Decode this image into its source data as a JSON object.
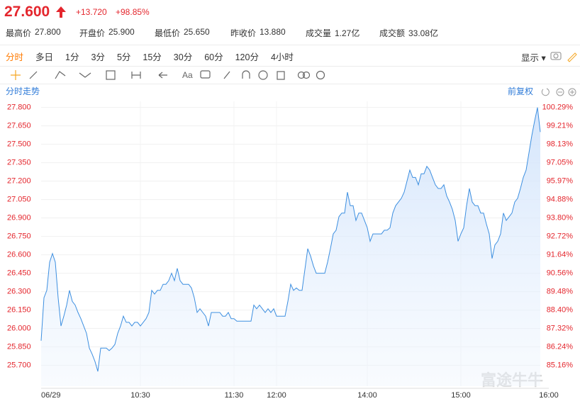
{
  "quote": {
    "price": "27.600",
    "change": "+13.720",
    "change_pct": "+98.85%"
  },
  "stats": [
    {
      "label": "最高价",
      "value": "27.800"
    },
    {
      "label": "开盘价",
      "value": "25.900"
    },
    {
      "label": "最低价",
      "value": "25.650"
    },
    {
      "label": "昨收价",
      "value": "13.880"
    },
    {
      "label": "成交量",
      "value": "1.27亿"
    },
    {
      "label": "成交额",
      "value": "33.08亿"
    }
  ],
  "tabs": [
    "分时",
    "多日",
    "1分",
    "3分",
    "5分",
    "15分",
    "30分",
    "60分",
    "120分",
    "4小时"
  ],
  "display": "显示",
  "toolbar_text": "Aa",
  "chart_data": {
    "type": "line",
    "title": "分时走势",
    "adjust": "前复权",
    "watermark": "富途牛牛",
    "color": "#3d8fe0",
    "values": [
      25.9,
      26.25,
      26.31,
      26.54,
      26.61,
      26.54,
      26.25,
      26.02,
      26.1,
      26.19,
      26.31,
      26.22,
      26.19,
      26.13,
      26.08,
      26.02,
      25.96,
      25.84,
      25.79,
      25.73,
      25.65,
      25.84,
      25.84,
      25.84,
      25.82,
      25.84,
      25.87,
      25.96,
      26.02,
      26.1,
      26.05,
      26.05,
      26.02,
      26.05,
      26.05,
      26.02,
      26.05,
      26.08,
      26.13,
      26.31,
      26.28,
      26.31,
      26.31,
      26.36,
      26.36,
      26.39,
      26.45,
      26.39,
      26.49,
      26.39,
      26.36,
      26.36,
      26.36,
      26.33,
      26.25,
      26.13,
      26.16,
      26.13,
      26.1,
      26.02,
      26.13,
      26.13,
      26.13,
      26.13,
      26.1,
      26.1,
      26.13,
      26.08,
      26.08,
      26.06,
      26.06,
      26.06,
      26.06,
      26.06,
      26.06,
      26.19,
      26.16,
      26.19,
      26.16,
      26.13,
      26.16,
      26.13,
      26.16,
      26.1,
      26.1,
      26.1,
      26.1,
      26.22,
      26.36,
      26.31,
      26.33,
      26.31,
      26.31,
      26.48,
      26.65,
      26.59,
      26.51,
      26.45,
      26.45,
      26.45,
      26.45,
      26.54,
      26.65,
      26.77,
      26.8,
      26.91,
      26.94,
      26.94,
      27.11,
      27.0,
      27.0,
      26.88,
      26.94,
      26.94,
      26.88,
      26.82,
      26.71,
      26.77,
      26.77,
      26.77,
      26.77,
      26.8,
      26.8,
      26.82,
      26.94,
      27.0,
      27.03,
      27.06,
      27.11,
      27.2,
      27.29,
      27.23,
      27.23,
      27.17,
      27.26,
      27.26,
      27.32,
      27.29,
      27.23,
      27.17,
      27.14,
      27.14,
      27.17,
      27.08,
      27.03,
      26.97,
      26.88,
      26.71,
      26.77,
      26.82,
      27.0,
      27.14,
      27.03,
      27.0,
      27.0,
      26.94,
      26.94,
      26.85,
      26.77,
      26.57,
      26.68,
      26.71,
      26.77,
      26.94,
      26.88,
      26.91,
      26.94,
      27.03,
      27.06,
      27.14,
      27.23,
      27.29,
      27.43,
      27.57,
      27.69,
      27.8,
      27.6
    ],
    "xlim": [
      0,
      179
    ],
    "xticks": [
      {
        "value": 0,
        "label": "06/29"
      },
      {
        "value": 35,
        "label": "10:30"
      },
      {
        "value": 68,
        "label": "11:30"
      },
      {
        "value": 83,
        "label": "12:00"
      },
      {
        "value": 115,
        "label": "14:00"
      },
      {
        "value": 148,
        "label": "15:00"
      },
      {
        "value": 179,
        "label": "16:00"
      }
    ],
    "ylim": [
      25.53,
      27.85
    ],
    "yticks": [
      {
        "value": 27.8,
        "label": "27.800"
      },
      {
        "value": 27.65,
        "label": "27.650"
      },
      {
        "value": 27.5,
        "label": "27.500"
      },
      {
        "value": 27.35,
        "label": "27.350"
      },
      {
        "value": 27.2,
        "label": "27.200"
      },
      {
        "value": 27.05,
        "label": "27.050"
      },
      {
        "value": 26.9,
        "label": "26.900"
      },
      {
        "value": 26.75,
        "label": "26.750"
      },
      {
        "value": 26.6,
        "label": "26.600"
      },
      {
        "value": 26.45,
        "label": "26.450"
      },
      {
        "value": 26.3,
        "label": "26.300"
      },
      {
        "value": 26.15,
        "label": "26.150"
      },
      {
        "value": 26,
        "label": "26.000"
      },
      {
        "value": 25.85,
        "label": "25.850"
      },
      {
        "value": 25.7,
        "label": "25.700"
      }
    ],
    "y2lim": [
      83.93,
      100.65
    ],
    "y2ticks": [
      {
        "value": 100.29,
        "label": "100.29%"
      },
      {
        "value": 99.21,
        "label": "99.21%"
      },
      {
        "value": 98.13,
        "label": "98.13%"
      },
      {
        "value": 97.05,
        "label": "97.05%"
      },
      {
        "value": 95.97,
        "label": "95.97%"
      },
      {
        "value": 94.88,
        "label": "94.88%"
      },
      {
        "value": 93.8,
        "label": "93.80%"
      },
      {
        "value": 92.72,
        "label": "92.72%"
      },
      {
        "value": 91.64,
        "label": "91.64%"
      },
      {
        "value": 90.56,
        "label": "90.56%"
      },
      {
        "value": 89.48,
        "label": "89.48%"
      },
      {
        "value": 88.4,
        "label": "88.40%"
      },
      {
        "value": 87.32,
        "label": "87.32%"
      },
      {
        "value": 86.24,
        "label": "86.24%"
      },
      {
        "value": 85.16,
        "label": "85.16%"
      }
    ],
    "grid": true
  }
}
